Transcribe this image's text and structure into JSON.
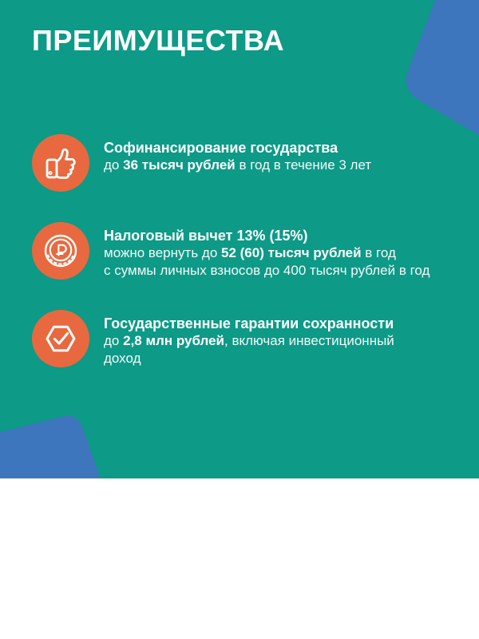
{
  "page": {
    "title": "ПРЕИМУЩЕСТВА"
  },
  "colors": {
    "background_teal": "#0d9a87",
    "icon_orange": "#e8693f",
    "corner_blue": "#3d76bc",
    "text_white": "#ffffff",
    "bottom_white": "#ffffff"
  },
  "benefits": [
    {
      "icon": "thumbs-up-icon",
      "heading": "Софинансирование государства",
      "lines": [
        [
          {
            "t": "до ",
            "b": false
          },
          {
            "t": "36 тысяч рублей",
            "b": true
          },
          {
            "t": " в год в течение 3 лет",
            "b": false
          }
        ]
      ]
    },
    {
      "icon": "ruble-coin-icon",
      "heading": "Налоговый вычет 13% (15%)",
      "lines": [
        [
          {
            "t": "можно вернуть до ",
            "b": false
          },
          {
            "t": "52 (60) тысяч рублей",
            "b": true
          },
          {
            "t": " в год",
            "b": false
          }
        ],
        [
          {
            "t": "с суммы личных взносов до 400 тысяч рублей в год",
            "b": false
          }
        ]
      ]
    },
    {
      "icon": "hexagon-check-icon",
      "heading": "Государственные гарантии сохранности",
      "lines": [
        [
          {
            "t": "до ",
            "b": false
          },
          {
            "t": "2,8 млн рублей",
            "b": true
          },
          {
            "t": ", включая инвестиционный",
            "b": false
          }
        ],
        [
          {
            "t": "доход",
            "b": false
          }
        ]
      ]
    }
  ]
}
